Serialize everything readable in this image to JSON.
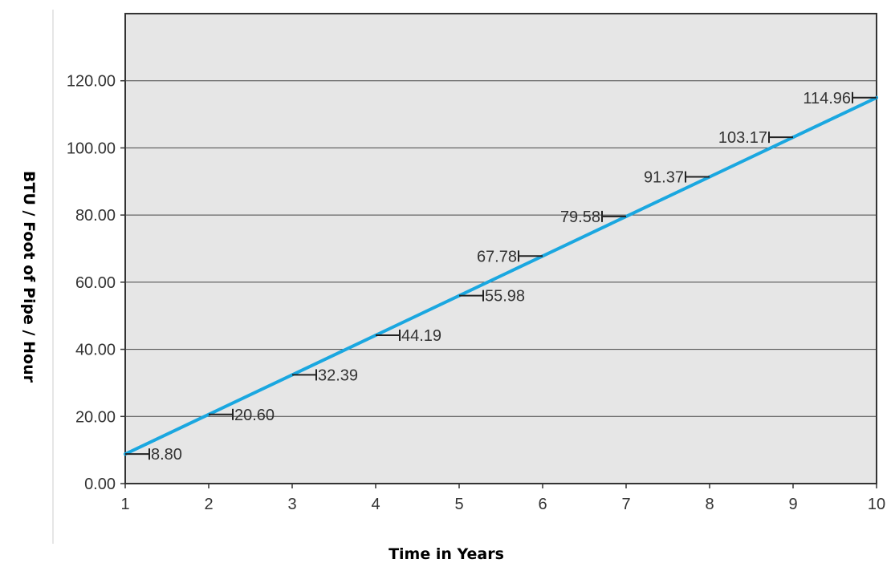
{
  "chart_data": {
    "type": "line",
    "title": "",
    "xlabel": "Time in Years",
    "ylabel": "BTU / Foot of Pipe / Hour",
    "x": [
      1,
      2,
      3,
      4,
      5,
      6,
      7,
      8,
      9,
      10
    ],
    "x_tick_labels": [
      "1",
      "2",
      "3",
      "4",
      "5",
      "6",
      "7",
      "8",
      "9",
      "10"
    ],
    "y_tick_labels": [
      "0.00",
      "20.00",
      "40.00",
      "60.00",
      "80.00",
      "100.00",
      "120.00"
    ],
    "y_ticks": [
      0,
      20,
      40,
      60,
      80,
      100,
      120
    ],
    "xlim": [
      1,
      10
    ],
    "ylim": [
      0,
      140
    ],
    "grid": "horizontal",
    "series": [
      {
        "values": [
          8.8,
          20.6,
          32.39,
          44.19,
          55.98,
          67.78,
          79.58,
          91.37,
          103.17,
          114.96
        ],
        "data_labels": [
          "8.80",
          "20.60",
          "32.39",
          "44.19",
          "55.98",
          "67.78",
          "79.58",
          "91.37",
          "103.17",
          "114.96"
        ],
        "color": "#1aa7e0"
      }
    ],
    "colors": {
      "plot_background": "#e6e6e6",
      "grid": "#444444",
      "axis": "#333333"
    }
  }
}
